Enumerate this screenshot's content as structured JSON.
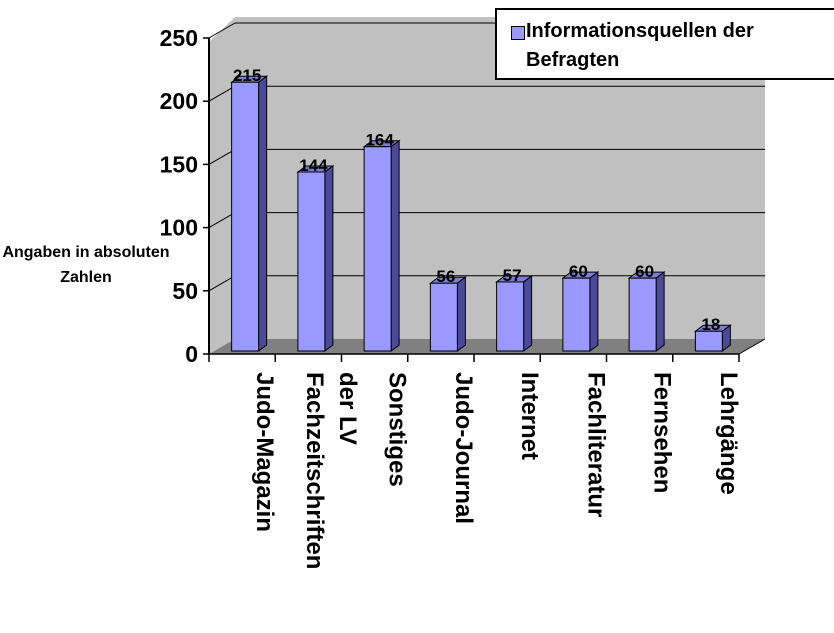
{
  "chart_data": {
    "type": "bar",
    "categories": [
      "Judo-Magazin",
      "Fachzeitschriften der LV",
      "Sonstiges",
      "Judo-Journal",
      "Internet",
      "Fachliteratur",
      "Fernsehen",
      "Lehrgänge"
    ],
    "category_lines": [
      [
        "Judo-Magazin"
      ],
      [
        "Fachzeitschriften",
        "der LV"
      ],
      [
        "Sonstiges"
      ],
      [
        "Judo-Journal"
      ],
      [
        "Internet"
      ],
      [
        "Fachliteratur"
      ],
      [
        "Fernsehen"
      ],
      [
        "Lehrgänge"
      ]
    ],
    "series": [
      {
        "name": "Informationsquellen der Befragten",
        "values": [
          215,
          144,
          164,
          56,
          57,
          60,
          60,
          18
        ]
      }
    ],
    "ylabel": "Angaben in absoluten Zahlen",
    "ylim": [
      0,
      250
    ],
    "yticks": [
      0,
      50,
      100,
      150,
      200,
      250
    ],
    "grid": true,
    "legend_position": "top-right",
    "colors": {
      "bar_front": "#9999ff",
      "bar_side": "#4a4a99",
      "bar_top": "#7c7cd4",
      "plot_wall": "#c0c0c0",
      "floor": "#808080"
    }
  }
}
